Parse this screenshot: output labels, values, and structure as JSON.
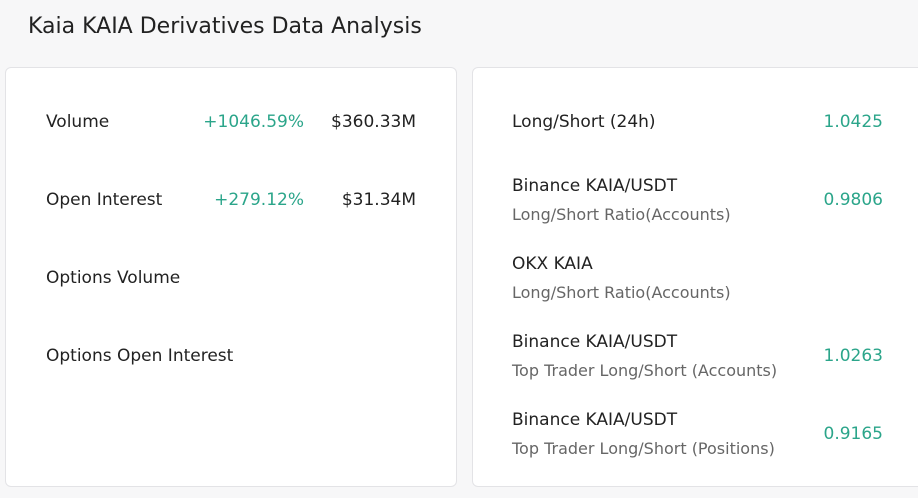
{
  "header": {
    "title": "Kaia KAIA Derivatives Data Analysis"
  },
  "left": {
    "rows": [
      {
        "label": "Volume",
        "change": "+1046.59%",
        "value": "$360.33M"
      },
      {
        "label": "Open Interest",
        "change": "+279.12%",
        "value": "$31.34M"
      },
      {
        "label": "Options Volume"
      },
      {
        "label": "Options Open Interest"
      }
    ]
  },
  "right": {
    "rows": [
      {
        "label": "Long/Short (24h)",
        "value": "1.0425"
      },
      {
        "label": "Binance KAIA/USDT",
        "sublabel": "Long/Short Ratio(Accounts)",
        "value": "0.9806"
      },
      {
        "label": "OKX KAIA",
        "sublabel": "Long/Short Ratio(Accounts)"
      },
      {
        "label": "Binance KAIA/USDT",
        "sublabel": "Top Trader Long/Short (Accounts)",
        "value": "1.0263"
      },
      {
        "label": "Binance KAIA/USDT",
        "sublabel": "Top Trader Long/Short (Positions)",
        "value": "0.9165"
      }
    ]
  }
}
